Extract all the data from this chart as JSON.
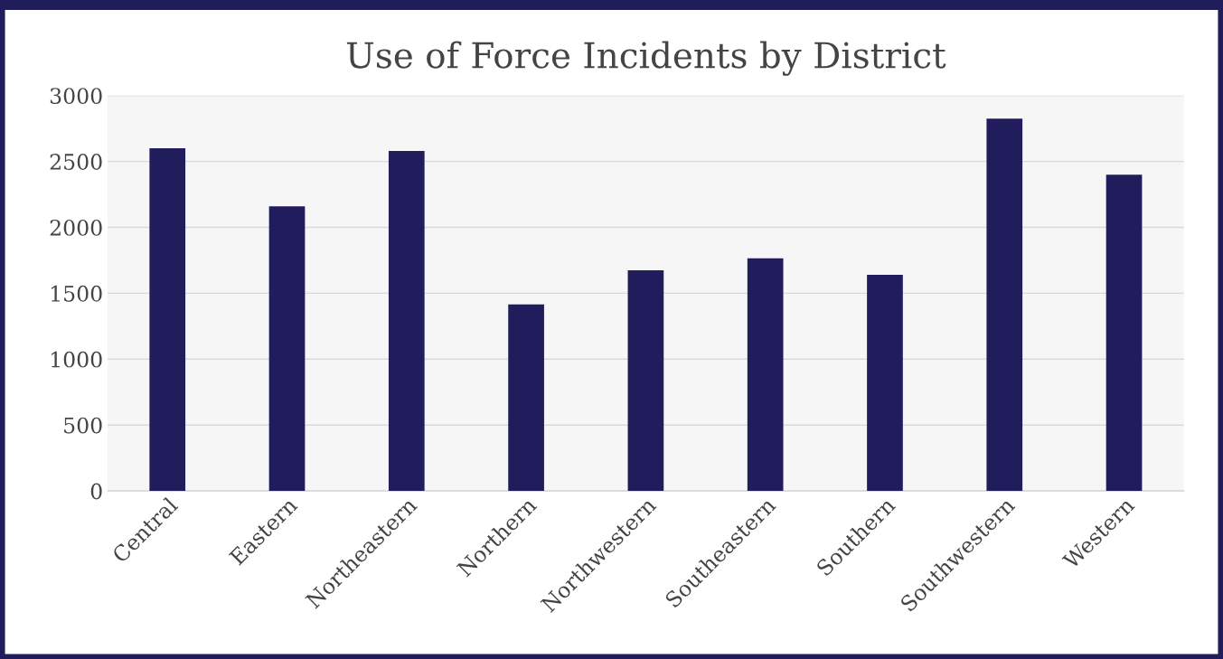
{
  "chart_data": {
    "type": "bar",
    "title": "Use of Force Incidents by District",
    "categories": [
      "Central",
      "Eastern",
      "Northeastern",
      "Northern",
      "Northwestern",
      "Southeastern",
      "Southern",
      "Southwestern",
      "Western"
    ],
    "values": [
      2600,
      2160,
      2580,
      1415,
      1675,
      1765,
      1640,
      2825,
      2400
    ],
    "color": "#211c5c",
    "ylim": [
      0,
      3000
    ],
    "yticks": [
      0,
      500,
      1000,
      1500,
      2000,
      2500,
      3000
    ],
    "grid": "y"
  }
}
